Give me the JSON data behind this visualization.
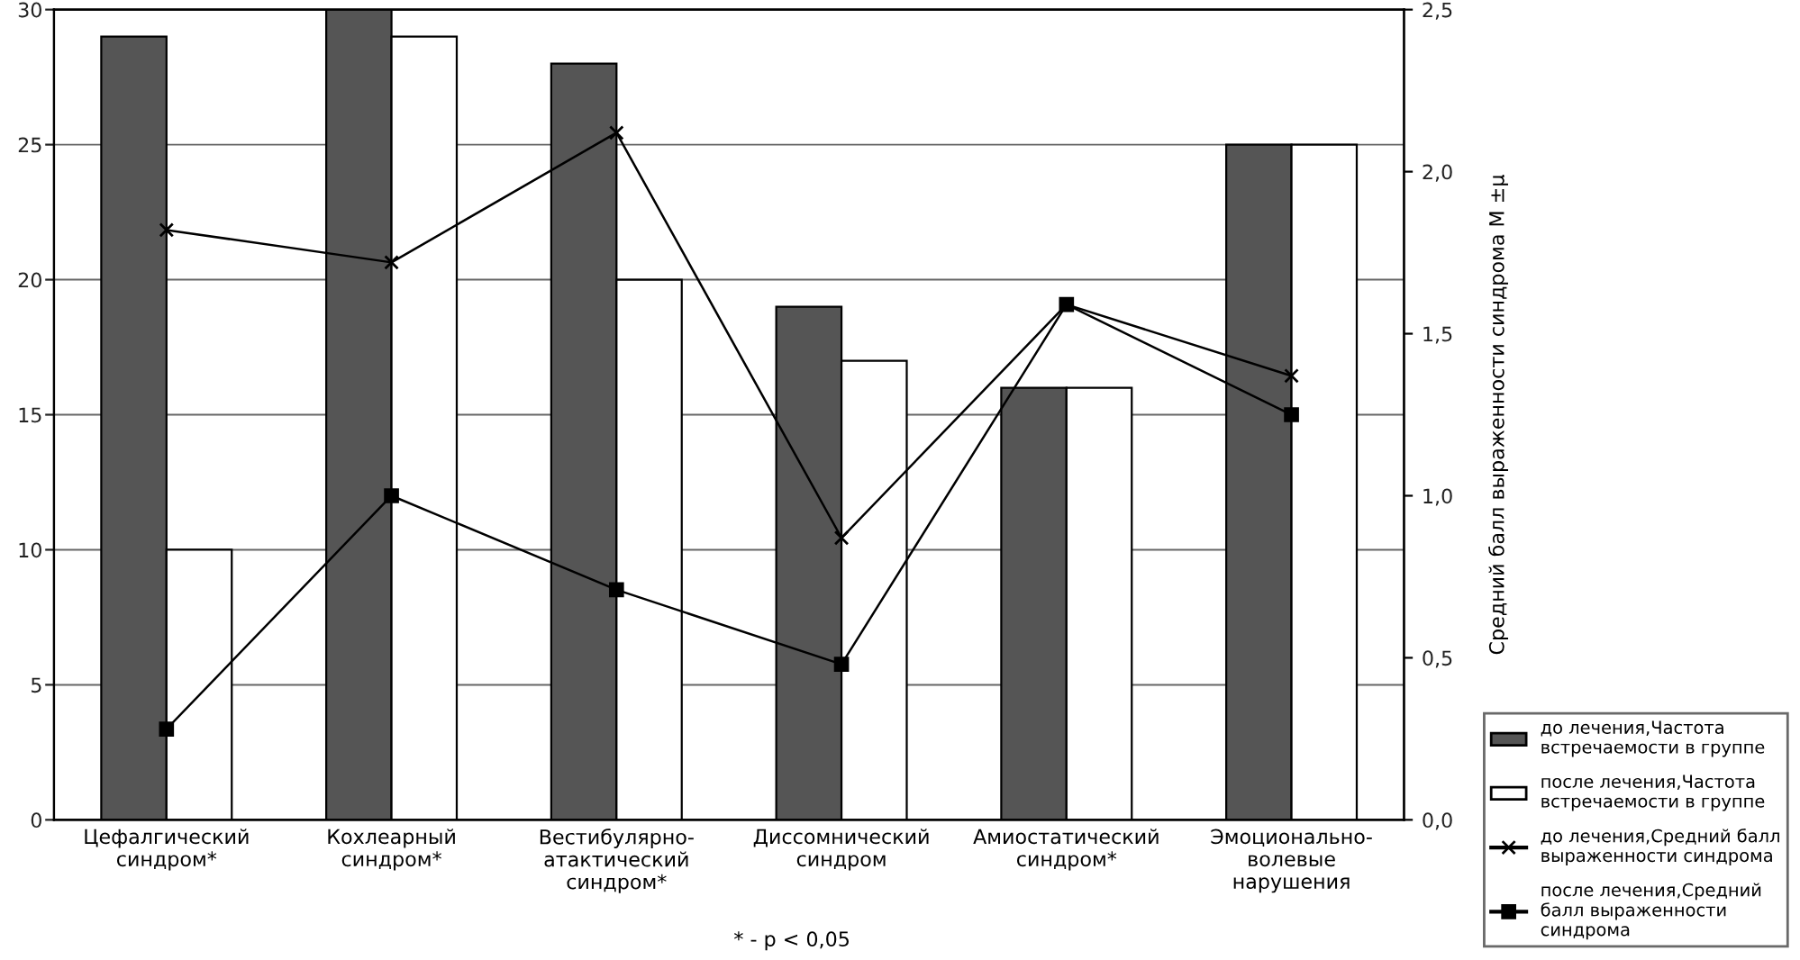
{
  "chart_data": {
    "type": "bar",
    "categories": [
      "Цефалгический\nсиндром*",
      "Кохлеарный\nсиндром*",
      "Вестибулярно-\nатактический\nсиндром*",
      "Диссомнический\nсиндром",
      "Амиостатический\nсиндром*",
      "Эмоционально-\nволевые\nнарушения"
    ],
    "series": [
      {
        "name": "до лечения,Частота встречаемости в группе",
        "color": "#555555",
        "values": [
          29,
          30,
          28,
          19,
          16,
          25
        ]
      },
      {
        "name": "после лечения,Частота встречаемости в группе",
        "color": "#ffffff",
        "values": [
          10,
          29,
          20,
          17,
          16,
          25
        ]
      },
      {
        "name": "до лечения,Средний балл выраженности синдрома",
        "type": "line",
        "axis": "y2",
        "marker": "cross",
        "color": "#000000",
        "values": [
          1.82,
          1.72,
          2.12,
          0.87,
          1.59,
          1.37
        ]
      },
      {
        "name": "после лечения,Средний балл выраженности синдрома",
        "type": "line",
        "axis": "y2",
        "marker": "square",
        "color": "#000000",
        "values": [
          0.28,
          1.0,
          0.71,
          0.48,
          1.59,
          1.25
        ]
      }
    ],
    "ylim": [
      0,
      30
    ],
    "yticks": [
      0,
      5,
      10,
      15,
      20,
      25,
      30
    ],
    "y2lim": [
      0,
      2.5
    ],
    "y2ticks": [
      {
        "value": 0,
        "label": "0,0"
      },
      {
        "value": 0.5,
        "label": "0,5"
      },
      {
        "value": 1.0,
        "label": "1,0"
      },
      {
        "value": 1.5,
        "label": "1,5"
      },
      {
        "value": 2.0,
        "label": "2,0"
      },
      {
        "value": 2.5,
        "label": "2,5"
      }
    ],
    "y2label": "Средний балл выраженности синдрома М ±μ",
    "annotations": [
      "* - p < 0,05"
    ],
    "grid": "y",
    "legend": "bottom right"
  }
}
